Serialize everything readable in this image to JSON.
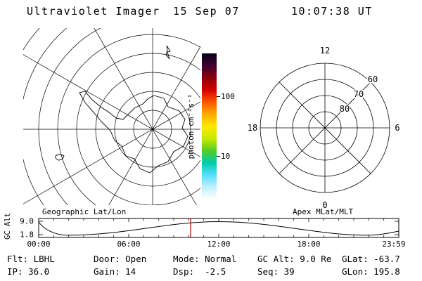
{
  "header": {
    "app_title": "Ultraviolet Imager",
    "date": "15 Sep 07",
    "time": "10:07:38 UT"
  },
  "left_plot": {
    "caption": "Geographic Lat/Lon"
  },
  "right_plot": {
    "caption": "Apex MLat/MLT",
    "mlt_top": "12",
    "mlt_left": "18",
    "mlt_right": "6",
    "mlt_bottom": "0",
    "ring_60": "60",
    "ring_70": "70",
    "ring_80": "80"
  },
  "colorbar": {
    "label": "photon cm⁻²s⁻¹",
    "tick_top": "100",
    "tick_bottom": "10",
    "scale": "log",
    "colors_top_to_bottom": [
      "#0a0014",
      "#3c0030",
      "#8a0010",
      "#d40000",
      "#ff5500",
      "#ffaa00",
      "#ffe800",
      "#c8e800",
      "#55cc22",
      "#00ccaa",
      "#55e0ff",
      "#c0f0ff",
      "#ffffff"
    ]
  },
  "alt_plot": {
    "ylabel": "GC Alt",
    "ytick_top": "9.0",
    "ytick_bottom": "1.8",
    "xticks": [
      "00:00",
      "06:00",
      "12:00",
      "18:00",
      "23:59"
    ],
    "marker_color": "#b00000"
  },
  "status": {
    "flt": "Flt: LBHL",
    "ip": "IP: 36.0",
    "door": "Door: Open",
    "gain": "Gain: 14",
    "mode": "Mode: Normal",
    "dsp": "Dsp:  -2.5",
    "gcalt": "GC Alt: 9.0 Re",
    "seq": "Seq: 39",
    "glat": "GLat: -63.7",
    "glon": "GLon: 195.8"
  },
  "chart_data": [
    {
      "type": "map",
      "title": "Geographic Lat/Lon",
      "description": "Southern-hemisphere azimuthal geographic grid centered on the pole with Antarctica coastline outline",
      "grid": {
        "latitude_circles_every_deg": 10,
        "longitude_spokes_every_deg": 30
      }
    },
    {
      "type": "polar",
      "title": "Apex MLat/MLT",
      "rings_mlat": [
        80,
        70,
        60,
        50
      ],
      "ring_tick_labels": [
        "80",
        "70",
        "60"
      ],
      "mlt_labels": {
        "top": "12",
        "left": "18",
        "right": "6",
        "bottom": "0"
      },
      "spokes_every_hours": 3,
      "data_points": "none visible (empty dial)"
    },
    {
      "type": "line",
      "title": "GC Alt vs UT",
      "ylabel": "GC Alt",
      "yticks": [
        9.0,
        1.8
      ],
      "xticks": [
        "00:00",
        "06:00",
        "12:00",
        "18:00",
        "23:59"
      ],
      "x_hours": [
        0,
        1.8,
        6,
        12,
        18,
        22,
        24
      ],
      "values_re": [
        8.5,
        1.8,
        6.8,
        9.0,
        6.8,
        1.8,
        3.0
      ],
      "current_time_marker": "10:07 UT",
      "marker_color": "#b00000"
    },
    {
      "type": "colorbar",
      "label": "photon cm⁻²s⁻¹",
      "scale": "log",
      "tick_values": [
        100,
        10
      ]
    }
  ]
}
